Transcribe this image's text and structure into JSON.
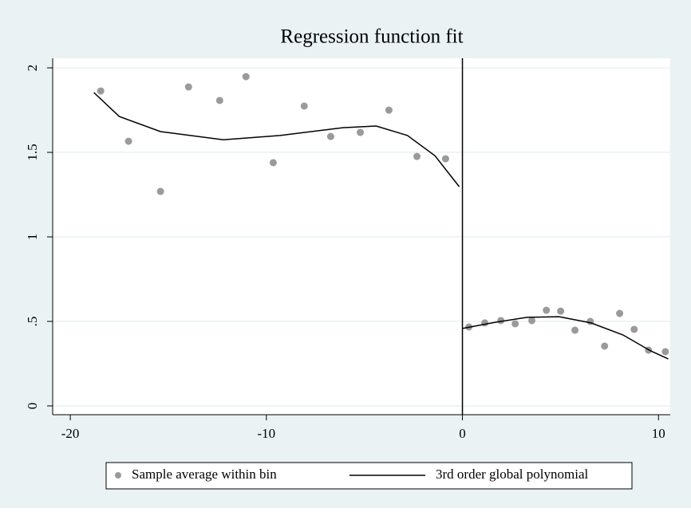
{
  "chart_data": {
    "type": "scatter",
    "title": "Regression function fit",
    "series": [
      {
        "name": "Sample average within bin",
        "type": "scatter",
        "color": "#9a9a9a",
        "x": [
          -18.45,
          -17.03,
          -15.4,
          -13.97,
          -12.38,
          -11.04,
          -9.65,
          -8.07,
          -6.72,
          -5.21,
          -3.75,
          -2.32,
          -0.86,
          0.33,
          1.14,
          1.96,
          2.69,
          3.54,
          4.28,
          5.01,
          5.74,
          6.52,
          7.25,
          8.02,
          8.76,
          9.49,
          10.35
        ],
        "values": [
          1.863,
          1.566,
          1.269,
          1.887,
          1.807,
          1.948,
          1.439,
          1.774,
          1.594,
          1.618,
          1.75,
          1.476,
          1.462,
          0.467,
          0.491,
          0.505,
          0.486,
          0.505,
          0.566,
          0.561,
          0.448,
          0.5,
          0.354,
          0.547,
          0.453,
          0.33,
          0.321
        ]
      },
      {
        "name": "3rd order global polynomial",
        "type": "line",
        "color": "#000000",
        "x": [
          -18.8,
          -17.5,
          -15.4,
          -12.2,
          -9.3,
          -6.1,
          -4.4,
          -2.8,
          -1.4,
          -0.16,
          null,
          0,
          1.67,
          3.3,
          4.93,
          6.56,
          8.19,
          9.61,
          10.5
        ],
        "values": [
          1.854,
          1.712,
          1.623,
          1.575,
          1.6,
          1.646,
          1.656,
          1.6,
          1.48,
          1.297,
          null,
          0.458,
          0.495,
          0.524,
          0.528,
          0.491,
          0.42,
          0.325,
          0.278
        ]
      }
    ],
    "vline": 0,
    "xlim": [
      -20.9,
      10.6
    ],
    "xticks": [
      -20,
      -10,
      0,
      10
    ],
    "ylim": [
      -0.052,
      2.057
    ],
    "yticks": [
      0,
      {
        "value": 0.5,
        "label": ".5"
      },
      1,
      1.5,
      2
    ],
    "grid": true
  }
}
